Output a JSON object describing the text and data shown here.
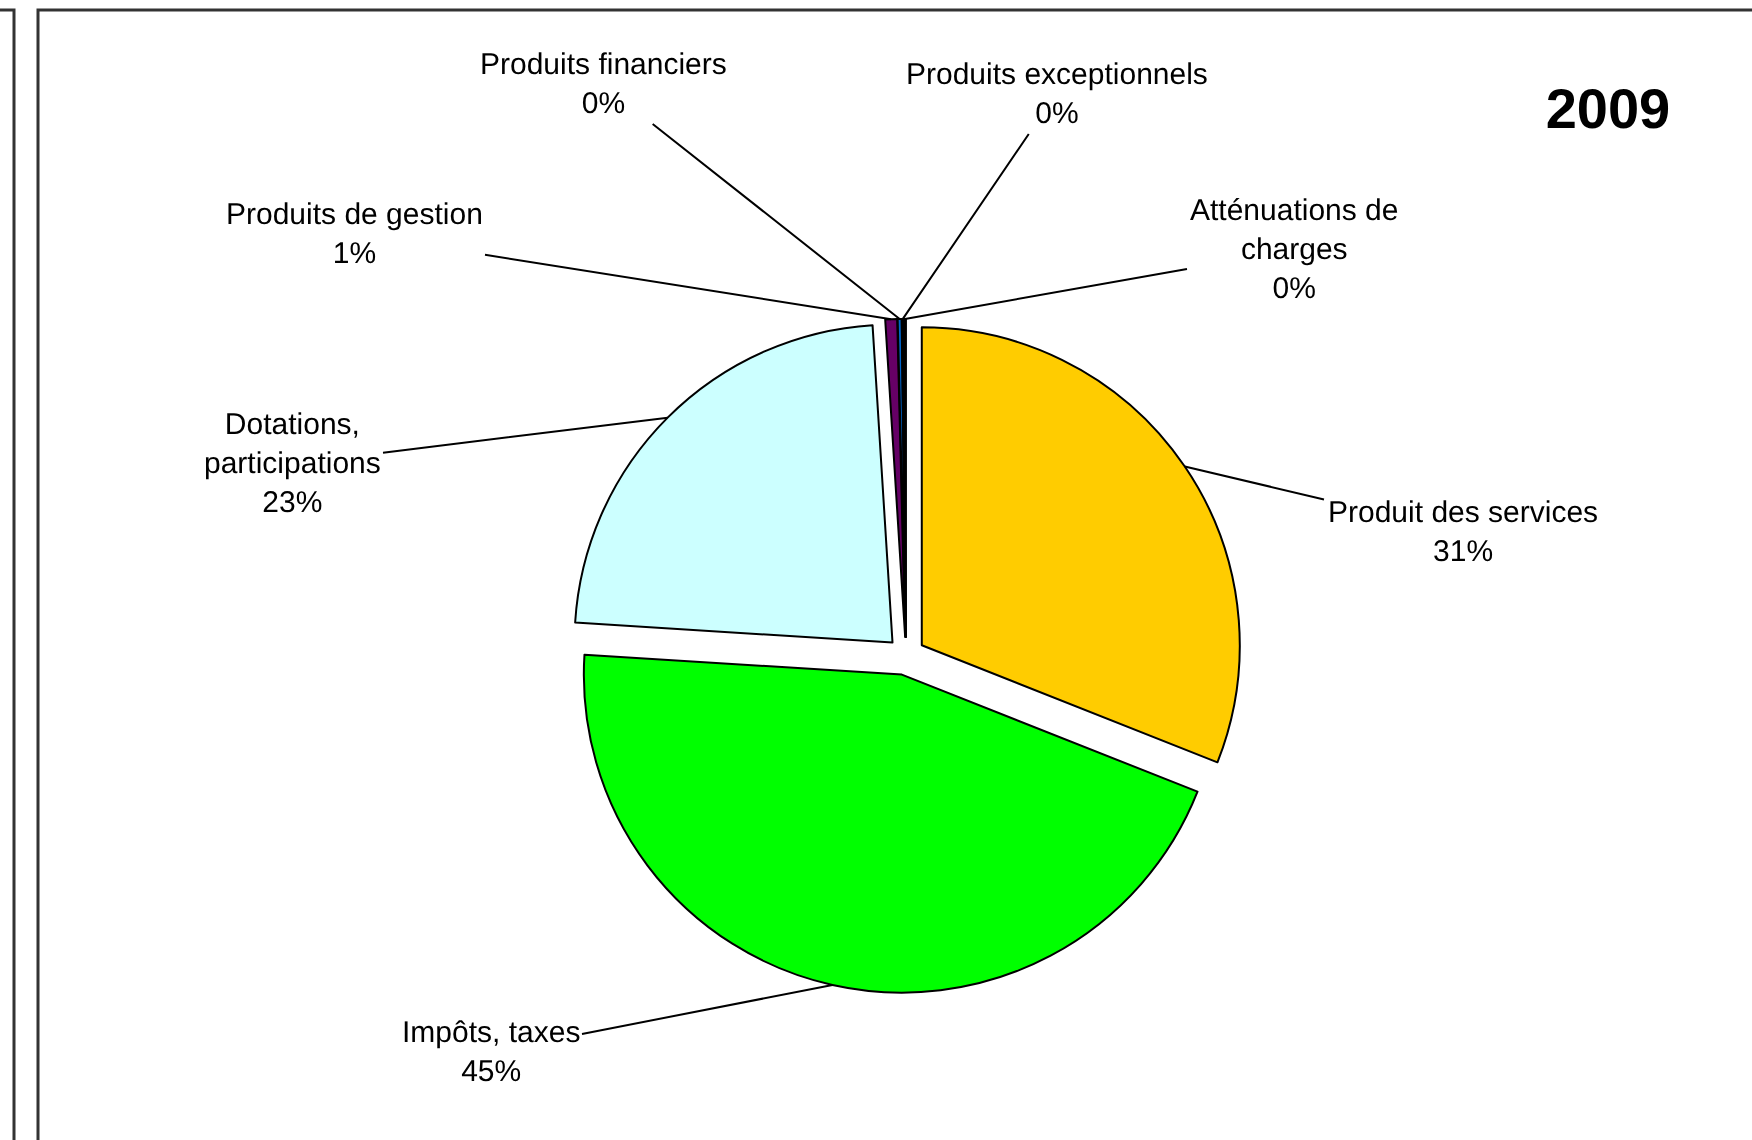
{
  "chart_data": {
    "type": "pie",
    "title": "2009",
    "categories": [
      "Produit des services",
      "Impôts, taxes",
      "Dotations, participations",
      "Produits de gestion",
      "Produits financiers",
      "Produits exceptionnels",
      "Atténuations de charges"
    ],
    "values": [
      31,
      45,
      23,
      0.6,
      0.2,
      0.1,
      0.1
    ],
    "value_labels": [
      "31%",
      "45%",
      "23%",
      "1%",
      "0%",
      "0%",
      "0%"
    ],
    "colors": [
      "#ffcc00",
      "#00ff00",
      "#ccffff",
      "#660066",
      "#0066cc",
      "#000080",
      "#ccccff"
    ]
  }
}
